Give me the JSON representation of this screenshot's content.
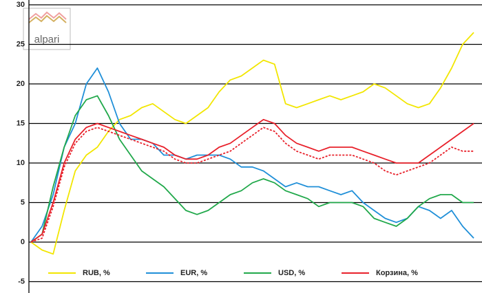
{
  "chart_data": {
    "type": "line",
    "logo": "alpari",
    "x": [
      0,
      1,
      2,
      3,
      4,
      5,
      6,
      7,
      8,
      9,
      10,
      11,
      12,
      13,
      14,
      15,
      16,
      17,
      18,
      19,
      20,
      21,
      22,
      23,
      24,
      25,
      26,
      27,
      28,
      29,
      30,
      31,
      32,
      33,
      34,
      35,
      36,
      37,
      38,
      39,
      40
    ],
    "xlim": [
      0,
      40
    ],
    "ylim": [
      -6,
      30
    ],
    "yticks": [
      -5,
      0,
      5,
      10,
      15,
      20,
      25,
      30
    ],
    "grid": true,
    "legend": "bottom",
    "series": [
      {
        "name": "RUB, %",
        "color": "#f2e600",
        "values": [
          0,
          -1,
          -1.5,
          4,
          9,
          11,
          12,
          14,
          15.5,
          16,
          17,
          17.5,
          16.5,
          15.5,
          15,
          16,
          17,
          19,
          20.5,
          21,
          22,
          23,
          22.5,
          17.5,
          17,
          17.5,
          18,
          18.5,
          18,
          18.5,
          19,
          20,
          19.5,
          18.5,
          17.5,
          17,
          17.5,
          19.5,
          22,
          25,
          26.5
        ]
      },
      {
        "name": "EUR, %",
        "color": "#1f8fd8",
        "values": [
          0,
          2,
          6,
          12,
          15,
          20,
          22,
          19,
          15,
          13,
          13,
          12.5,
          11,
          11,
          10.5,
          11,
          11,
          11,
          10.5,
          9.5,
          9.5,
          9,
          8,
          7,
          7.5,
          7,
          7,
          6.5,
          6,
          6.5,
          5,
          4,
          3,
          2.5,
          3,
          4.5,
          4,
          3,
          4,
          2,
          0.5
        ]
      },
      {
        "name": "USD, %",
        "color": "#20a84a",
        "values": [
          0,
          1,
          7,
          12,
          16,
          18,
          18.5,
          16,
          13,
          11,
          9,
          8,
          7,
          5.5,
          4,
          3.5,
          4,
          5,
          6,
          6.5,
          7.5,
          8,
          7.5,
          6.5,
          6,
          5.5,
          4.5,
          5,
          5,
          5,
          4.5,
          3,
          2.5,
          2,
          3,
          4.5,
          5.5,
          6,
          6,
          5,
          5
        ]
      },
      {
        "name": "Корзина, %",
        "color": "#e8202a",
        "values": [
          0,
          1,
          5,
          10,
          13,
          14.5,
          15,
          14.5,
          14,
          13.5,
          13,
          12.5,
          12,
          11,
          10.5,
          10.5,
          11,
          12,
          12.5,
          13.5,
          14.5,
          15.5,
          15,
          13.5,
          12.5,
          12,
          11.5,
          12,
          12,
          12,
          11.5,
          11,
          10.5,
          10,
          10,
          10,
          11,
          12,
          13,
          14,
          15
        ]
      },
      {
        "color": "#e8202a",
        "dashed": true,
        "values": [
          0,
          0.5,
          4.5,
          9.5,
          12.5,
          14,
          14.5,
          14,
          13.5,
          13,
          12.5,
          12,
          11.5,
          10.5,
          10,
          10,
          10.5,
          11,
          11.5,
          12.5,
          13.5,
          14.5,
          14,
          12.5,
          11.5,
          11,
          10.5,
          11,
          11,
          11,
          10.5,
          10,
          9,
          8.5,
          9,
          9.5,
          10,
          11,
          12,
          11.5,
          11.5
        ]
      }
    ]
  }
}
